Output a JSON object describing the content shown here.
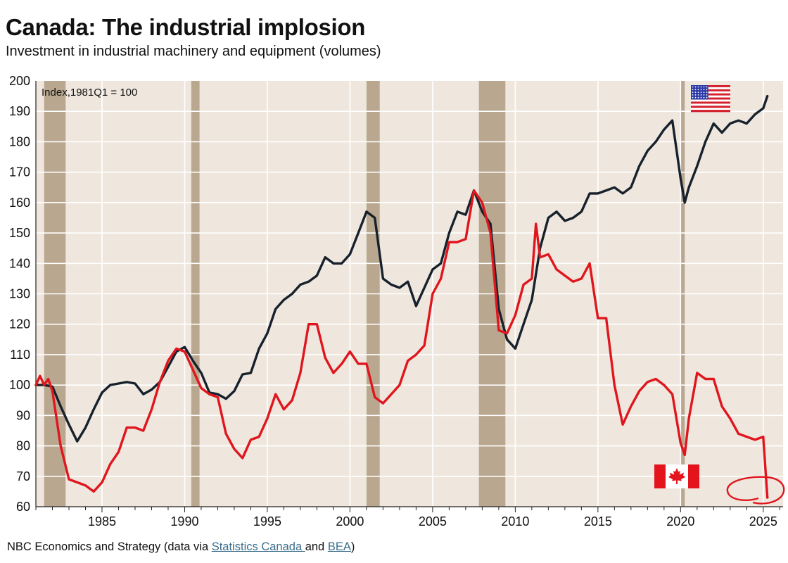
{
  "title": "Canada: The industrial implosion",
  "subtitle": "Investment in industrial machinery and equipment (volumes)",
  "source": {
    "prefix": "NBC Economics and Strategy (data via ",
    "link1": "Statistics Canada ",
    "middle": "and ",
    "link2": "BEA",
    "suffix": ")"
  },
  "colors": {
    "plot_background": "#efe7de",
    "recession_band": "#b9a78f",
    "us_line": "#17212c",
    "canada_line": "#e0161e",
    "annotation_circle": "#e0161e"
  },
  "icons": {
    "us": "us-flag-icon",
    "canada": "canada-flag-icon"
  },
  "chart_data": {
    "type": "line",
    "title": "Canada: The industrial implosion",
    "subtitle": "Investment in industrial machinery and equipment (volumes)",
    "unit_label": "Index,1981Q1 = 100",
    "xlim": [
      1981,
      2026.2
    ],
    "ylim": [
      60,
      200
    ],
    "y_ticks": [
      60,
      70,
      80,
      90,
      100,
      110,
      120,
      130,
      140,
      150,
      160,
      170,
      180,
      190,
      200
    ],
    "x_ticks": [
      1985,
      1990,
      1995,
      2000,
      2005,
      2010,
      2015,
      2020,
      2025
    ],
    "grid": true,
    "recessions": [
      [
        1981.5,
        1982.8
      ],
      [
        1990.4,
        1990.9
      ],
      [
        2001.0,
        2001.8
      ],
      [
        2007.8,
        2009.4
      ],
      [
        2020.0,
        2020.25
      ]
    ],
    "series": [
      {
        "name": "US",
        "x": [
          1981,
          1981.5,
          1982,
          1982.5,
          1983,
          1983.5,
          1984,
          1984.5,
          1985,
          1985.5,
          1986,
          1986.5,
          1987,
          1987.5,
          1988,
          1988.5,
          1989,
          1989.5,
          1990,
          1990.5,
          1991,
          1991.5,
          1992,
          1992.5,
          1993,
          1993.5,
          1994,
          1994.5,
          1995,
          1995.5,
          1996,
          1996.5,
          1997,
          1997.5,
          1998,
          1998.5,
          1999,
          1999.5,
          2000,
          2000.5,
          2001,
          2001.5,
          2002,
          2002.5,
          2003,
          2003.5,
          2004,
          2004.5,
          2005,
          2005.5,
          2006,
          2006.5,
          2007,
          2007.5,
          2008,
          2008.5,
          2009,
          2009.5,
          2010,
          2010.5,
          2011,
          2011.5,
          2012,
          2012.5,
          2013,
          2013.5,
          2014,
          2014.5,
          2015,
          2015.5,
          2016,
          2016.5,
          2017,
          2017.5,
          2018,
          2018.5,
          2019,
          2019.5,
          2020,
          2020.25,
          2020.5,
          2021,
          2021.5,
          2022,
          2022.5,
          2023,
          2023.5,
          2024,
          2024.5,
          2025,
          2025.25
        ],
        "values": [
          100,
          100,
          99.5,
          93,
          87,
          81.5,
          86,
          92,
          97.5,
          100,
          100.5,
          101,
          100.5,
          97,
          98.5,
          101,
          106,
          111,
          112.5,
          108,
          104,
          97.5,
          97,
          95.5,
          98,
          103.5,
          104,
          112,
          117,
          125,
          128,
          130,
          133,
          134,
          136,
          142,
          140,
          140,
          143,
          150,
          157,
          155,
          135,
          133,
          132,
          134,
          126,
          132,
          138,
          140,
          150,
          157,
          156,
          164,
          157,
          153,
          125,
          115,
          112,
          120,
          128,
          145,
          155,
          157,
          154,
          155,
          157,
          163,
          163,
          164,
          165,
          163,
          165,
          172,
          177,
          180,
          184,
          187,
          168,
          160,
          165,
          172,
          180,
          186,
          183,
          186,
          187,
          186,
          189,
          191,
          195
        ]
      },
      {
        "name": "Canada",
        "x": [
          1981,
          1981.25,
          1981.5,
          1981.75,
          1982,
          1982.5,
          1983,
          1983.5,
          1984,
          1984.5,
          1985,
          1985.5,
          1986,
          1986.5,
          1987,
          1987.5,
          1988,
          1988.5,
          1989,
          1989.5,
          1990,
          1990.5,
          1991,
          1991.5,
          1992,
          1992.5,
          1993,
          1993.5,
          1994,
          1994.5,
          1995,
          1995.5,
          1996,
          1996.5,
          1997,
          1997.5,
          1998,
          1998.5,
          1999,
          1999.5,
          2000,
          2000.5,
          2001,
          2001.5,
          2002,
          2002.5,
          2003,
          2003.5,
          2004,
          2004.5,
          2005,
          2005.5,
          2006,
          2006.5,
          2007,
          2007.5,
          2008,
          2008.5,
          2009,
          2009.5,
          2010,
          2010.5,
          2011,
          2011.25,
          2011.5,
          2012,
          2012.5,
          2013,
          2013.5,
          2014,
          2014.5,
          2015,
          2015.5,
          2016,
          2016.5,
          2017,
          2017.5,
          2018,
          2018.5,
          2019,
          2019.5,
          2020,
          2020.25,
          2020.5,
          2021,
          2021.5,
          2022,
          2022.5,
          2023,
          2023.5,
          2024,
          2024.5,
          2025,
          2025.25
        ],
        "values": [
          100,
          103,
          100,
          102,
          98,
          80,
          69,
          68,
          67,
          65,
          68,
          74,
          78,
          86,
          86,
          85,
          92,
          101,
          108,
          112,
          111,
          105,
          99,
          97,
          96,
          84,
          79,
          76,
          82,
          83,
          89,
          97,
          92,
          95,
          104,
          120,
          120,
          109,
          104,
          107,
          111,
          107,
          107,
          96,
          94,
          97,
          100,
          108,
          110,
          113,
          130,
          135,
          147,
          147,
          148,
          164,
          160,
          150,
          118,
          117,
          123,
          133,
          135,
          153,
          142,
          143,
          138,
          136,
          134,
          135,
          140,
          122,
          122,
          100,
          87,
          93,
          98,
          101,
          102,
          100,
          97,
          81,
          77,
          89,
          104,
          102,
          102,
          93,
          89,
          84,
          83,
          82,
          83,
          63
        ]
      }
    ]
  }
}
